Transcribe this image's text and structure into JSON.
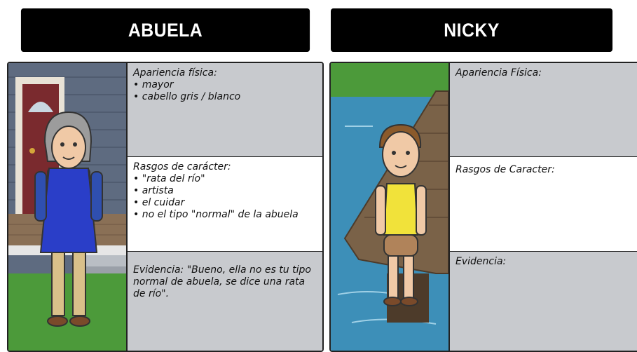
{
  "panels": [
    {
      "title": "ABUELA",
      "cells": [
        {
          "label": "Apariencia física:",
          "items": [
            "mayor",
            "cabello gris / blanco"
          ]
        },
        {
          "label": "Rasgos de carácter:",
          "items": [
            "\"rata del río\"",
            "artista",
            "el cuidar",
            "no el tipo \"normal\" de la abuela"
          ]
        },
        {
          "label": "Evidencia: \"Bueno, ella no es tu tipo normal de abuela, se dice una rata de río\"."
        }
      ]
    },
    {
      "title": "NICKY",
      "cells": [
        {
          "label": "Apariencia Física:"
        },
        {
          "label": "Rasgos de Caracter:"
        },
        {
          "label": "Evidencia:"
        }
      ]
    }
  ]
}
